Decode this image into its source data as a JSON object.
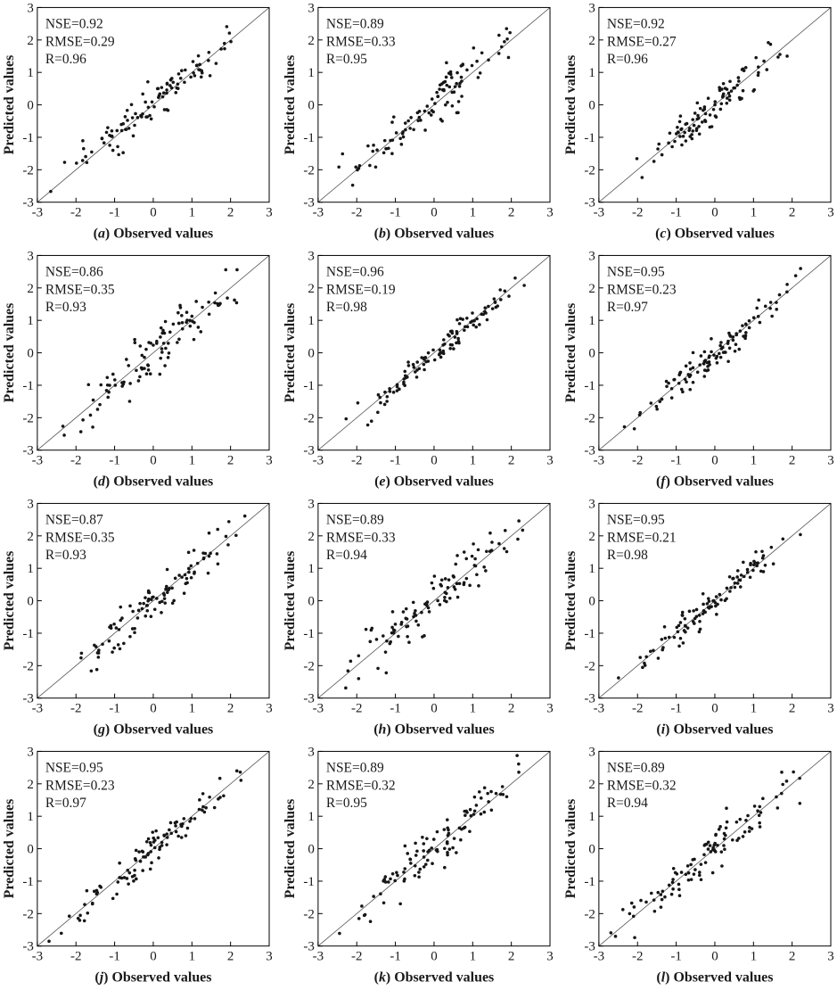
{
  "figure": {
    "description": "Grid of 12 scatter plots comparing predicted vs observed values with 1:1 diagonal line",
    "rows": 4,
    "cols": 3
  },
  "chart_data": {
    "type": "scatter",
    "xlabel": "Observed values",
    "ylabel": "Predicted values",
    "xlim": [
      -3,
      3
    ],
    "ylim": [
      -3,
      3
    ],
    "xticks": [
      -3,
      -2,
      -1,
      0,
      1,
      2,
      3
    ],
    "yticks": [
      -3,
      -2,
      -1,
      0,
      1,
      2,
      3
    ],
    "grid": false,
    "reference_line": "y = x diagonal from (-3,-3) to (3,3)",
    "points_note": "Individual point coordinates are not labeled in the figure; each panel shows ~105 points scattered about y=x with spread equal to the panel RMSE. Points are regenerated deterministically from seed + RMSE.",
    "style": {
      "point_color": "#161616",
      "diagonal_color": "#555555",
      "box_color": "#000000",
      "text_color": "#1a1a1a",
      "plot_background": "#ffffff"
    },
    "panels": [
      {
        "label": "a",
        "caption": "(a) Observed values",
        "stats": {
          "NSE": 0.92,
          "RMSE": 0.29,
          "R": 0.96
        },
        "stats_lines": [
          "NSE=0.92",
          "RMSE=0.29",
          "R=0.96"
        ],
        "n_points": 105,
        "seed": 3
      },
      {
        "label": "b",
        "caption": "(b) Observed values",
        "stats": {
          "NSE": 0.89,
          "RMSE": 0.33,
          "R": 0.95
        },
        "stats_lines": [
          "NSE=0.89",
          "RMSE=0.33",
          "R=0.95"
        ],
        "n_points": 105,
        "seed": 7
      },
      {
        "label": "c",
        "caption": "(c) Observed values",
        "stats": {
          "NSE": 0.92,
          "RMSE": 0.27,
          "R": 0.96
        },
        "stats_lines": [
          "NSE=0.92",
          "RMSE=0.27",
          "R=0.96"
        ],
        "n_points": 105,
        "seed": 13
      },
      {
        "label": "d",
        "caption": "(d) Observed values",
        "stats": {
          "NSE": 0.86,
          "RMSE": 0.35,
          "R": 0.93
        },
        "stats_lines": [
          "NSE=0.86",
          "RMSE=0.35",
          "R=0.93"
        ],
        "n_points": 105,
        "seed": 21
      },
      {
        "label": "e",
        "caption": "(e) Observed values",
        "stats": {
          "NSE": 0.96,
          "RMSE": 0.19,
          "R": 0.98
        },
        "stats_lines": [
          "NSE=0.96",
          "RMSE=0.19",
          "R=0.98"
        ],
        "n_points": 108,
        "seed": 29
      },
      {
        "label": "f",
        "caption": "(f) Observed values",
        "stats": {
          "NSE": 0.95,
          "RMSE": 0.23,
          "R": 0.97
        },
        "stats_lines": [
          "NSE=0.95",
          "RMSE=0.23",
          "R=0.97"
        ],
        "n_points": 108,
        "seed": 35
      },
      {
        "label": "g",
        "caption": "(g) Observed values",
        "stats": {
          "NSE": 0.87,
          "RMSE": 0.35,
          "R": 0.93
        },
        "stats_lines": [
          "NSE=0.87",
          "RMSE=0.35",
          "R=0.93"
        ],
        "n_points": 105,
        "seed": 41
      },
      {
        "label": "h",
        "caption": "(h) Observed values",
        "stats": {
          "NSE": 0.89,
          "RMSE": 0.33,
          "R": 0.94
        },
        "stats_lines": [
          "NSE=0.89",
          "RMSE=0.33",
          "R=0.94"
        ],
        "n_points": 105,
        "seed": 47
      },
      {
        "label": "i",
        "caption": "(i) Observed values",
        "stats": {
          "NSE": 0.95,
          "RMSE": 0.21,
          "R": 0.98
        },
        "stats_lines": [
          "NSE=0.95",
          "RMSE=0.21",
          "R=0.98"
        ],
        "n_points": 105,
        "seed": 55
      },
      {
        "label": "j",
        "caption": "(j) Observed values",
        "stats": {
          "NSE": 0.95,
          "RMSE": 0.23,
          "R": 0.97
        },
        "stats_lines": [
          "NSE=0.95",
          "RMSE=0.23",
          "R=0.97"
        ],
        "n_points": 105,
        "seed": 63
      },
      {
        "label": "k",
        "caption": "(k) Observed values",
        "stats": {
          "NSE": 0.89,
          "RMSE": 0.32,
          "R": 0.95
        },
        "stats_lines": [
          "NSE=0.89",
          "RMSE=0.32",
          "R=0.95"
        ],
        "n_points": 105,
        "seed": 71
      },
      {
        "label": "l",
        "caption": "(l) Observed values",
        "stats": {
          "NSE": 0.89,
          "RMSE": 0.32,
          "R": 0.94
        },
        "stats_lines": [
          "NSE=0.89",
          "RMSE=0.32",
          "R=0.94"
        ],
        "n_points": 105,
        "seed": 83
      }
    ]
  }
}
